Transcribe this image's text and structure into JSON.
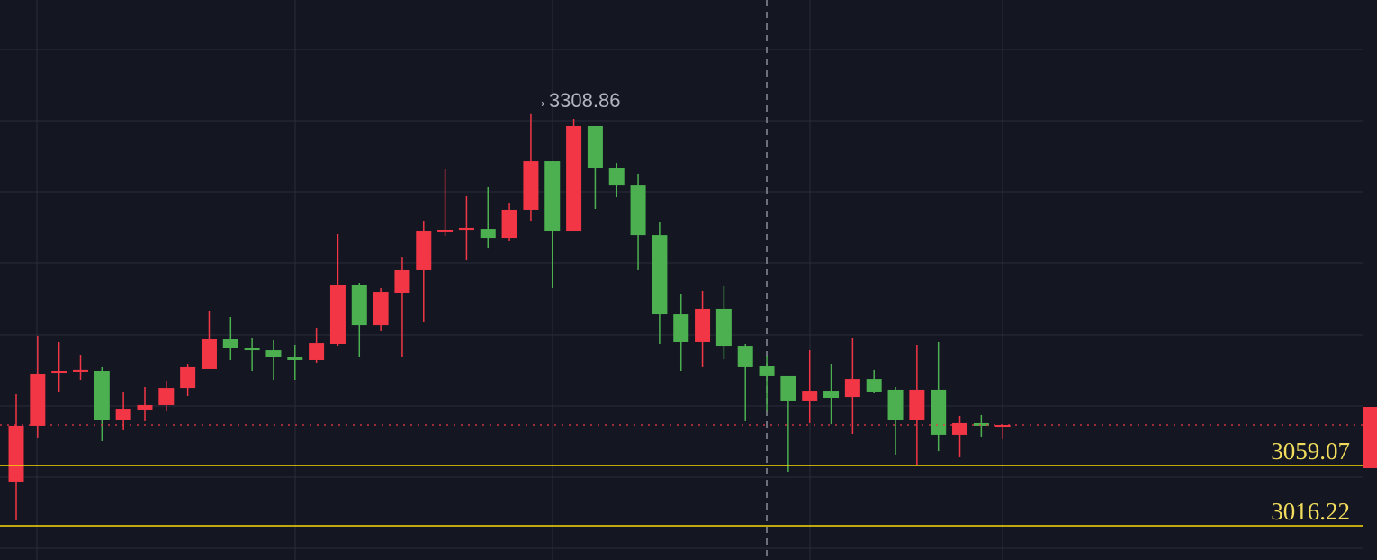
{
  "chart_data": {
    "type": "candlestick",
    "up_color": "#f23645",
    "down_color": "#4caf50",
    "level_color": "#f5d90a",
    "ylim": [
      2991.9,
      3390.0
    ],
    "open": [
      3047.6,
      3087.3,
      3125.0,
      3125.7,
      3126.3,
      3091.1,
      3098.8,
      3102.0,
      3114.1,
      3127.6,
      3148.7,
      3142.9,
      3141.0,
      3135.9,
      3134.0,
      3145.5,
      3187.7,
      3158.9,
      3182.0,
      3198.0,
      3224.9,
      3226.1,
      3227.4,
      3221.0,
      3240.9,
      3275.4,
      3225.5,
      3300.4,
      3270.3,
      3258.1,
      3222.9,
      3166.6,
      3146.8,
      3170.5,
      3144.2,
      3129.5,
      3122.5,
      3105.2,
      3112.2,
      3107.7,
      3120.5,
      3112.9,
      3091.1,
      3112.9,
      3080.9,
      3089.2,
      3086.6
    ],
    "high": [
      3109.7,
      3151.3,
      3146.8,
      3137.8,
      3128.9,
      3111.6,
      3114.8,
      3119.3,
      3131.4,
      3169.2,
      3164.7,
      3150.0,
      3148.1,
      3144.9,
      3157.0,
      3223.6,
      3189.0,
      3185.2,
      3206.9,
      3232.5,
      3269.7,
      3250.5,
      3256.9,
      3245.3,
      3308.86,
      3275.4,
      3305.5,
      3300.4,
      3274.1,
      3266.5,
      3231.9,
      3181.3,
      3183.3,
      3186.5,
      3145.5,
      3137.2,
      3122.5,
      3141.0,
      3131.4,
      3150.0,
      3127.0,
      3114.8,
      3144.9,
      3146.8,
      3094.3,
      3095.0,
      3087.9
    ],
    "low": [
      3020.1,
      3079.0,
      3111.6,
      3119.9,
      3076.4,
      3084.1,
      3090.5,
      3098.1,
      3108.4,
      3127.6,
      3134.0,
      3126.3,
      3119.9,
      3119.9,
      3132.1,
      3144.2,
      3136.5,
      3154.5,
      3136.5,
      3160.9,
      3222.3,
      3205.0,
      3213.3,
      3218.5,
      3232.5,
      3185.2,
      3225.5,
      3241.5,
      3249.8,
      3198.0,
      3145.5,
      3126.3,
      3128.9,
      3134.6,
      3090.5,
      3098.1,
      3054.6,
      3089.2,
      3088.5,
      3081.5,
      3110.3,
      3066.8,
      3059.1,
      3069.3,
      3064.9,
      3079.6,
      3077.7
    ],
    "close": [
      3087.3,
      3124.4,
      3126.3,
      3127.0,
      3091.1,
      3099.4,
      3102.0,
      3114.1,
      3128.9,
      3148.7,
      3142.3,
      3141.0,
      3136.5,
      3134.0,
      3146.1,
      3187.7,
      3158.9,
      3182.6,
      3198.0,
      3225.5,
      3226.8,
      3228.1,
      3221.0,
      3240.9,
      3275.4,
      3225.5,
      3300.4,
      3270.3,
      3258.1,
      3222.9,
      3166.6,
      3146.8,
      3170.5,
      3144.2,
      3128.9,
      3122.5,
      3105.2,
      3112.2,
      3107.1,
      3120.5,
      3111.6,
      3091.1,
      3112.9,
      3080.9,
      3089.2,
      3087.3,
      3087.9
    ],
    "levels": [
      3059.07,
      3016.22
    ],
    "max_label": "→3308.86"
  }
}
